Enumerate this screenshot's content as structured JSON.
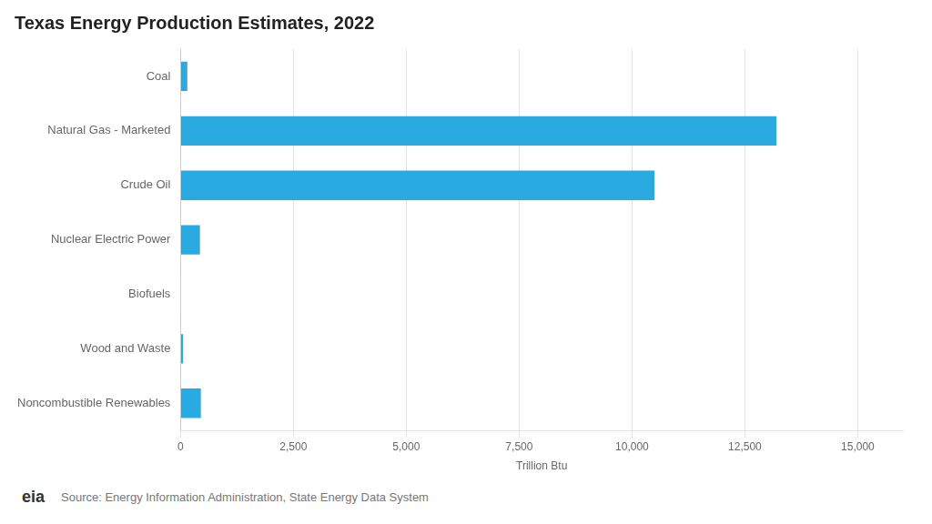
{
  "chart_data": {
    "type": "bar",
    "orientation": "horizontal",
    "title": "Texas Energy Production Estimates, 2022",
    "categories": [
      "Noncombustible Renewables",
      "Wood and Waste",
      "Biofuels",
      "Nuclear Electric Power",
      "Crude Oil",
      "Natural Gas - Marketed",
      "Coal"
    ],
    "values": [
      450,
      55,
      10,
      430,
      10500,
      13200,
      150
    ],
    "color": "#29ABE2",
    "xlabel": "Trillion Btu",
    "xlim": [
      0,
      16000
    ],
    "xticks": [
      0,
      {
        "value": 2500,
        "label": "2,500"
      },
      {
        "value": 5000,
        "label": "5,000"
      },
      {
        "value": 7500,
        "label": "7,500"
      },
      {
        "value": 10000,
        "label": "10,000"
      },
      {
        "value": 12500,
        "label": "12,500"
      },
      {
        "value": 15000,
        "label": "15,000"
      }
    ],
    "grid": true,
    "annotations": [
      "eia",
      "Source: Energy Information Administration, State Energy Data System"
    ]
  }
}
